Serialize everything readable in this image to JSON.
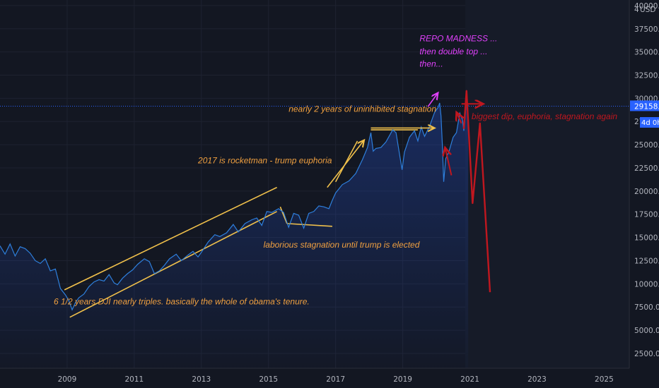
{
  "chart_data": {
    "type": "line",
    "currency": "USD",
    "currency_prefix": "4",
    "ylim": [
      900,
      40600
    ],
    "xlim": [
      2007.0,
      2025.75
    ],
    "y_ticks": [
      "2500.0",
      "5000.0",
      "7500.0",
      "10000.0",
      "12500.0",
      "15000.0",
      "17500.0",
      "20000.0",
      "22500.0",
      "25000.0",
      "27500.0",
      "30000.0",
      "32500.0",
      "35000.0",
      "37500.0",
      "40000.0"
    ],
    "y_tick_values": [
      2500,
      5000,
      7500,
      10000,
      12500,
      15000,
      17500,
      20000,
      22500,
      25000,
      27500,
      30000,
      32500,
      35000,
      37500,
      40000
    ],
    "x_ticks": [
      "2009",
      "2011",
      "2013",
      "2015",
      "2017",
      "2019",
      "2021",
      "2023",
      "2025"
    ],
    "x_tick_values": [
      2009,
      2011,
      2013,
      2015,
      2017,
      2019,
      2021,
      2023,
      2025
    ],
    "last_price": {
      "label": "29158.0",
      "value": 29158,
      "countdown": "4d 0h"
    },
    "series": [
      {
        "color": "#2e7fdc",
        "points": [
          [
            2007.0,
            14100
          ],
          [
            2007.15,
            13200
          ],
          [
            2007.3,
            14300
          ],
          [
            2007.45,
            13000
          ],
          [
            2007.6,
            14000
          ],
          [
            2007.75,
            13800
          ],
          [
            2007.9,
            13300
          ],
          [
            2008.05,
            12500
          ],
          [
            2008.2,
            12200
          ],
          [
            2008.35,
            12700
          ],
          [
            2008.5,
            11400
          ],
          [
            2008.65,
            11600
          ],
          [
            2008.8,
            9500
          ],
          [
            2008.95,
            8800
          ],
          [
            2009.05,
            8200
          ],
          [
            2009.15,
            7200
          ],
          [
            2009.25,
            8000
          ],
          [
            2009.35,
            8500
          ],
          [
            2009.5,
            8900
          ],
          [
            2009.65,
            9700
          ],
          [
            2009.8,
            10200
          ],
          [
            2009.95,
            10450
          ],
          [
            2010.1,
            10300
          ],
          [
            2010.25,
            11000
          ],
          [
            2010.4,
            10100
          ],
          [
            2010.5,
            9900
          ],
          [
            2010.65,
            10600
          ],
          [
            2010.8,
            11100
          ],
          [
            2010.95,
            11500
          ],
          [
            2011.1,
            12100
          ],
          [
            2011.3,
            12700
          ],
          [
            2011.45,
            12400
          ],
          [
            2011.6,
            11100
          ],
          [
            2011.75,
            11400
          ],
          [
            2011.9,
            12000
          ],
          [
            2012.05,
            12700
          ],
          [
            2012.25,
            13200
          ],
          [
            2012.4,
            12500
          ],
          [
            2012.6,
            13100
          ],
          [
            2012.75,
            13500
          ],
          [
            2012.9,
            12900
          ],
          [
            2013.0,
            13400
          ],
          [
            2013.2,
            14500
          ],
          [
            2013.4,
            15300
          ],
          [
            2013.55,
            15100
          ],
          [
            2013.75,
            15500
          ],
          [
            2013.95,
            16400
          ],
          [
            2014.1,
            15600
          ],
          [
            2014.3,
            16500
          ],
          [
            2014.5,
            16900
          ],
          [
            2014.65,
            17100
          ],
          [
            2014.8,
            16300
          ],
          [
            2014.95,
            17800
          ],
          [
            2015.1,
            17700
          ],
          [
            2015.3,
            18100
          ],
          [
            2015.45,
            17700
          ],
          [
            2015.6,
            16100
          ],
          [
            2015.75,
            17600
          ],
          [
            2015.9,
            17400
          ],
          [
            2016.05,
            16000
          ],
          [
            2016.2,
            17600
          ],
          [
            2016.35,
            17800
          ],
          [
            2016.5,
            18400
          ],
          [
            2016.65,
            18300
          ],
          [
            2016.8,
            18100
          ],
          [
            2016.9,
            19000
          ],
          [
            2017.0,
            19800
          ],
          [
            2017.2,
            20700
          ],
          [
            2017.4,
            21100
          ],
          [
            2017.6,
            21900
          ],
          [
            2017.8,
            23400
          ],
          [
            2017.95,
            24700
          ],
          [
            2018.05,
            26300
          ],
          [
            2018.12,
            24300
          ],
          [
            2018.2,
            24600
          ],
          [
            2018.35,
            24700
          ],
          [
            2018.5,
            25300
          ],
          [
            2018.7,
            26600
          ],
          [
            2018.8,
            26300
          ],
          [
            2018.88,
            24500
          ],
          [
            2018.98,
            22300
          ],
          [
            2019.05,
            24200
          ],
          [
            2019.2,
            25800
          ],
          [
            2019.35,
            26500
          ],
          [
            2019.45,
            25400
          ],
          [
            2019.55,
            26900
          ],
          [
            2019.65,
            25900
          ],
          [
            2019.8,
            27000
          ],
          [
            2019.95,
            28500
          ],
          [
            2020.05,
            29000
          ],
          [
            2020.1,
            29500
          ],
          [
            2020.14,
            28100
          ],
          [
            2020.18,
            25000
          ],
          [
            2020.22,
            21000
          ],
          [
            2020.28,
            23500
          ],
          [
            2020.38,
            24300
          ],
          [
            2020.5,
            25800
          ],
          [
            2020.6,
            26300
          ],
          [
            2020.7,
            28400
          ],
          [
            2020.78,
            27700
          ],
          [
            2020.82,
            26500
          ],
          [
            2020.9,
            29800
          ],
          [
            2020.95,
            29158
          ]
        ]
      }
    ],
    "projection": {
      "color": "#c0171f",
      "points": [
        [
          2020.82,
          26700
        ],
        [
          2020.9,
          30800
        ],
        [
          2021.08,
          18700
        ],
        [
          2021.3,
          27300
        ],
        [
          2021.6,
          9100
        ]
      ]
    },
    "trendlines": [
      {
        "color": "#f0c04b",
        "points": [
          [
            2008.92,
            9350
          ],
          [
            2015.25,
            20400
          ]
        ]
      },
      {
        "color": "#f0c04b",
        "points": [
          [
            2009.08,
            6400
          ],
          [
            2015.25,
            17800
          ]
        ]
      },
      {
        "color": "#f0c04b",
        "points": [
          [
            2015.35,
            18300
          ],
          [
            2015.55,
            16500
          ]
        ]
      },
      {
        "color": "#f0c04b",
        "points": [
          [
            2015.55,
            16500
          ],
          [
            2016.9,
            16200
          ]
        ]
      },
      {
        "color": "#f0c04b",
        "points": [
          [
            2017.0,
            21000
          ],
          [
            2017.65,
            25400
          ]
        ]
      },
      {
        "color": "#f0c04b",
        "points": [
          [
            2018.05,
            26600
          ],
          [
            2019.45,
            26600
          ]
        ]
      }
    ],
    "arrows": [
      {
        "color": "#f0c04b",
        "from": [
          2016.75,
          20400
        ],
        "to": [
          2017.85,
          25500
        ]
      },
      {
        "color": "#f0c04b",
        "from": [
          2018.05,
          26800
        ],
        "to": [
          2019.95,
          26800
        ]
      },
      {
        "color": "#e040fb",
        "from": [
          2019.75,
          29100
        ],
        "to": [
          2020.05,
          30600
        ]
      },
      {
        "color": "#c0171f",
        "from": [
          2020.75,
          29400
        ],
        "to": [
          2021.4,
          29400
        ]
      },
      {
        "color": "#c0171f",
        "from": [
          2020.45,
          21700
        ],
        "to": [
          2020.26,
          24700
        ]
      },
      {
        "color": "#c0171f",
        "from": [
          2020.75,
          27300
        ],
        "to": [
          2020.6,
          28500
        ]
      }
    ],
    "annotations": [
      {
        "text": "REPO MADNESS ...",
        "x": 2019.5,
        "y": 36150,
        "color": "#e040fb"
      },
      {
        "text": "then double top ...",
        "x": 2019.5,
        "y": 34750,
        "color": "#e040fb"
      },
      {
        "text": "then...",
        "x": 2019.5,
        "y": 33400,
        "color": "#e040fb"
      },
      {
        "text": "nearly 2 years of uninhibited stagnation",
        "x": 2015.6,
        "y": 28550,
        "color": "#f0a040"
      },
      {
        "text": "biggest dip, euphoria, stagnation again",
        "x": 2021.05,
        "y": 27750,
        "color": "#c0171f"
      },
      {
        "text": "2017 is rocketman - trump euphoria",
        "x": 2012.9,
        "y": 23000,
        "color": "#f0a040"
      },
      {
        "text": "laborious stagnation until trump is elected",
        "x": 2014.85,
        "y": 13900,
        "color": "#f0a040"
      },
      {
        "text": "6 1/2 years DJI nearly triples. basically the whole of obama's tenure.",
        "x": 2008.6,
        "y": 7770,
        "color": "#f0a040"
      }
    ]
  }
}
